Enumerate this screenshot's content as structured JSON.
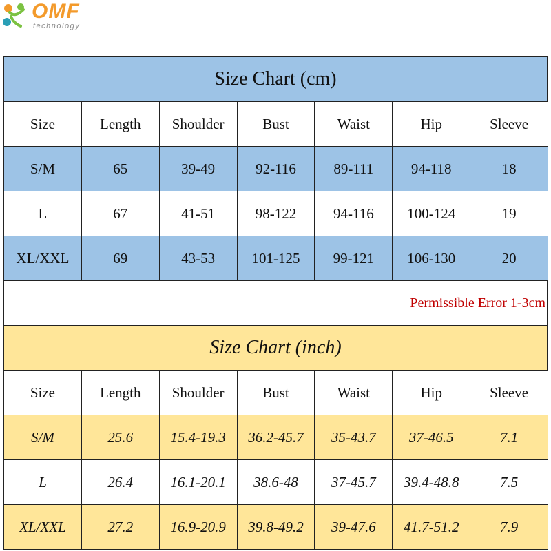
{
  "logo": {
    "name": "OMF",
    "tagline": "technology"
  },
  "cm_table": {
    "title": "Size Chart (cm)",
    "header": [
      "Size",
      "Length",
      "Shoulder",
      "Bust",
      "Waist",
      "Hip",
      "Sleeve"
    ],
    "rows": [
      [
        "S/M",
        "65",
        "39-49",
        "92-116",
        "89-111",
        "94-118",
        "18"
      ],
      [
        "L",
        "67",
        "41-51",
        "98-122",
        "94-116",
        "100-124",
        "19"
      ],
      [
        "XL/XXL",
        "69",
        "43-53",
        "101-125",
        "99-121",
        "106-130",
        "20"
      ]
    ]
  },
  "note": "Permissible Error 1-3cm",
  "inch_table": {
    "title": "Size Chart (inch)",
    "header": [
      "Size",
      "Length",
      "Shoulder",
      "Bust",
      "Waist",
      "Hip",
      "Sleeve"
    ],
    "rows": [
      [
        "S/M",
        "25.6",
        "15.4-19.3",
        "36.2-45.7",
        "35-43.7",
        "37-46.5",
        "7.1"
      ],
      [
        "L",
        "26.4",
        "16.1-20.1",
        "38.6-48",
        "37-45.7",
        "39.4-48.8",
        "7.5"
      ],
      [
        "XL/XXL",
        "27.2",
        "16.9-20.9",
        "39.8-49.2",
        "39-47.6",
        "41.7-51.2",
        "7.9"
      ]
    ]
  }
}
